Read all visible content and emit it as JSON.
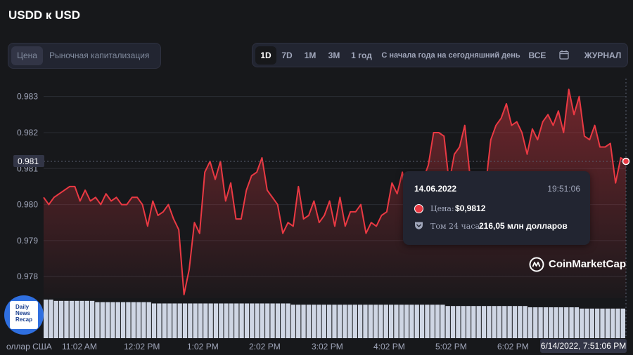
{
  "title": "USDD к USD",
  "view_toggle": {
    "price": "Цена",
    "market_cap": "Рыночная капитализация"
  },
  "ranges": [
    "1D",
    "7D",
    "1M",
    "3M",
    "1 год",
    "С начала года на сегодняшний день",
    "ВСЕ"
  ],
  "active_range": "1D",
  "log_label": "ЖУРНАЛ",
  "icons": {
    "calendar": "calendar-icon",
    "shield": "shield-icon",
    "logo": "coinmarketcap-logo-icon"
  },
  "colors": {
    "line": "#ea3943",
    "volume": "#cfd6e4",
    "background": "#17181b",
    "grid": "#2a2c33"
  },
  "tooltip": {
    "date": "14.06.2022",
    "time": "19:51:06",
    "price_label": "Цена:",
    "price_value": "$0,9812",
    "volume_label": "Том 24 часа:",
    "volume_value": "216,05 млн долларов"
  },
  "brand": "CoinMarketCap",
  "hover_time": "6/14/2022, 7:51:06 PM",
  "current_label": "0.981",
  "badge_text": [
    "Daily",
    "News",
    "Recap"
  ],
  "chart_data": {
    "type": "line",
    "ylim": [
      0.9774,
      0.9835
    ],
    "yticks": [
      "0.983",
      "0.982",
      "0.981",
      "0.980",
      "0.979",
      "0.978"
    ],
    "xticks": [
      "оллар США",
      "11:02 AM",
      "12:02 PM",
      "1:02 PM",
      "2:02 PM",
      "3:02 PM",
      "4:02 PM",
      "5:02 PM",
      "6:02 PM"
    ],
    "series": [
      {
        "values": [
          0.9802,
          0.98,
          0.9802,
          0.9803,
          0.9804,
          0.9805,
          0.9805,
          0.9801,
          0.9804,
          0.9801,
          0.9802,
          0.98,
          0.9803,
          0.9801,
          0.9802,
          0.98,
          0.98,
          0.9802,
          0.9802,
          0.98,
          0.9794,
          0.9801,
          0.9797,
          0.9798,
          0.98,
          0.9796,
          0.9793,
          0.9775,
          0.9782,
          0.9795,
          0.9792,
          0.9809,
          0.9812,
          0.9807,
          0.9812,
          0.9801,
          0.9806,
          0.9796,
          0.9796,
          0.9804,
          0.9808,
          0.9809,
          0.9813,
          0.9804,
          0.9802,
          0.98,
          0.9792,
          0.9795,
          0.9794,
          0.9805,
          0.9796,
          0.9797,
          0.9801,
          0.9795,
          0.9797,
          0.9801,
          0.9794,
          0.9802,
          0.9794,
          0.9798,
          0.9798,
          0.98,
          0.9792,
          0.9795,
          0.9794,
          0.9797,
          0.9798,
          0.9806,
          0.9803,
          0.9809,
          0.98,
          0.9792,
          0.9805,
          0.9807,
          0.9811,
          0.982,
          0.982,
          0.9819,
          0.9806,
          0.9814,
          0.9816,
          0.9822,
          0.9808,
          0.9806,
          0.9806,
          0.9805,
          0.9818,
          0.9822,
          0.9824,
          0.9828,
          0.9822,
          0.9823,
          0.982,
          0.9814,
          0.9821,
          0.9818,
          0.9823,
          0.9825,
          0.9822,
          0.9826,
          0.982,
          0.9832,
          0.9825,
          0.983,
          0.9819,
          0.9818,
          0.9822,
          0.9816,
          0.9816,
          0.9817,
          0.9806,
          0.9813,
          0.9812
        ]
      }
    ],
    "volume": [
      0.03,
      0.03,
      0.029,
      0.029,
      0.029,
      0.029,
      0.029,
      0.029,
      0.029,
      0.029,
      0.028,
      0.028,
      0.028,
      0.028,
      0.028,
      0.028,
      0.028,
      0.028,
      0.028,
      0.028,
      0.028,
      0.027,
      0.027,
      0.027,
      0.027,
      0.027,
      0.027,
      0.027,
      0.027,
      0.027,
      0.027,
      0.027,
      0.027,
      0.027,
      0.027,
      0.027,
      0.027,
      0.027,
      0.027,
      0.027,
      0.027,
      0.027,
      0.027,
      0.027,
      0.027,
      0.027,
      0.027,
      0.027,
      0.026,
      0.026,
      0.026,
      0.026,
      0.026,
      0.026,
      0.026,
      0.026,
      0.026,
      0.026,
      0.026,
      0.026,
      0.026,
      0.026,
      0.026,
      0.026,
      0.026,
      0.026,
      0.026,
      0.026,
      0.026,
      0.026,
      0.026,
      0.026,
      0.026,
      0.026,
      0.026,
      0.026,
      0.026,
      0.026,
      0.025,
      0.025,
      0.025,
      0.025,
      0.025,
      0.025,
      0.025,
      0.025,
      0.025,
      0.025,
      0.025,
      0.025,
      0.025,
      0.025,
      0.025,
      0.025,
      0.024,
      0.024,
      0.024,
      0.024,
      0.024,
      0.024,
      0.024,
      0.024,
      0.024,
      0.024,
      0.023,
      0.023,
      0.023,
      0.023,
      0.023,
      0.023,
      0.023,
      0.023,
      0.023
    ]
  }
}
